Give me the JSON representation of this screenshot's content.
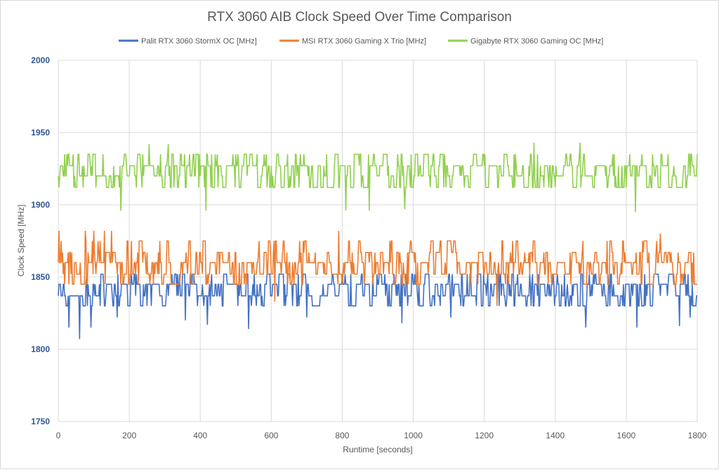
{
  "chart_data": {
    "type": "line",
    "title": "RTX 3060 AIB Clock Speed Over Time Comparison",
    "xlabel": "Runtime [seconds]",
    "ylabel": "Clock Speed [MHz]",
    "xlim": [
      0,
      1800
    ],
    "ylim": [
      1750,
      2000
    ],
    "x_ticks": [
      "0",
      "200",
      "400",
      "600",
      "800",
      "1000",
      "1200",
      "1400",
      "1600",
      "1800"
    ],
    "y_ticks": [
      "1750",
      "1800",
      "1850",
      "1900",
      "1950",
      "2000"
    ],
    "grid": true,
    "legend_position": "top",
    "sample_interval_s": 2,
    "series": [
      {
        "name": "Palit RTX 3060 StormX OC [MHz]",
        "color": "#4472c4",
        "levels": [
          1830,
          1837,
          1845,
          1852
        ],
        "weights": [
          0.2,
          0.28,
          0.34,
          0.18
        ],
        "spikes": [
          {
            "x": 60,
            "y": 1807
          },
          {
            "x": 30,
            "y": 1815
          },
          {
            "x": 92,
            "y": 1815
          },
          {
            "x": 165,
            "y": 1822
          },
          {
            "x": 358,
            "y": 1820
          },
          {
            "x": 420,
            "y": 1817
          },
          {
            "x": 535,
            "y": 1814
          },
          {
            "x": 700,
            "y": 1822
          },
          {
            "x": 968,
            "y": 1818
          },
          {
            "x": 1105,
            "y": 1822
          },
          {
            "x": 1485,
            "y": 1815
          },
          {
            "x": 1630,
            "y": 1815
          },
          {
            "x": 1750,
            "y": 1816
          },
          {
            "x": 1780,
            "y": 1822
          }
        ],
        "seed": 11
      },
      {
        "name": "MSI RTX 3060 Gaming X Trio [MHz]",
        "color": "#ed7d31",
        "levels": [
          1845,
          1852,
          1860,
          1867,
          1875
        ],
        "weights": [
          0.12,
          0.3,
          0.3,
          0.18,
          0.1
        ],
        "spikes": [
          {
            "x": 2,
            "y": 1882
          },
          {
            "x": 75,
            "y": 1882
          },
          {
            "x": 100,
            "y": 1882
          },
          {
            "x": 130,
            "y": 1882
          },
          {
            "x": 150,
            "y": 1882
          },
          {
            "x": 790,
            "y": 1882
          },
          {
            "x": 1695,
            "y": 1880
          },
          {
            "x": 610,
            "y": 1833
          },
          {
            "x": 1235,
            "y": 1830
          }
        ],
        "seed": 23
      },
      {
        "name": "Gigabyte RTX 3060 Gaming OC [MHz]",
        "color": "#92d050",
        "levels": [
          1912,
          1920,
          1927,
          1935
        ],
        "weights": [
          0.22,
          0.24,
          0.36,
          0.18
        ],
        "spikes": [
          {
            "x": 175,
            "y": 1896
          },
          {
            "x": 415,
            "y": 1896
          },
          {
            "x": 810,
            "y": 1896
          },
          {
            "x": 875,
            "y": 1896
          },
          {
            "x": 975,
            "y": 1897
          },
          {
            "x": 1625,
            "y": 1895
          },
          {
            "x": 255,
            "y": 1942
          },
          {
            "x": 310,
            "y": 1942
          },
          {
            "x": 1340,
            "y": 1943
          },
          {
            "x": 1470,
            "y": 1943
          }
        ],
        "seed": 37
      }
    ]
  }
}
